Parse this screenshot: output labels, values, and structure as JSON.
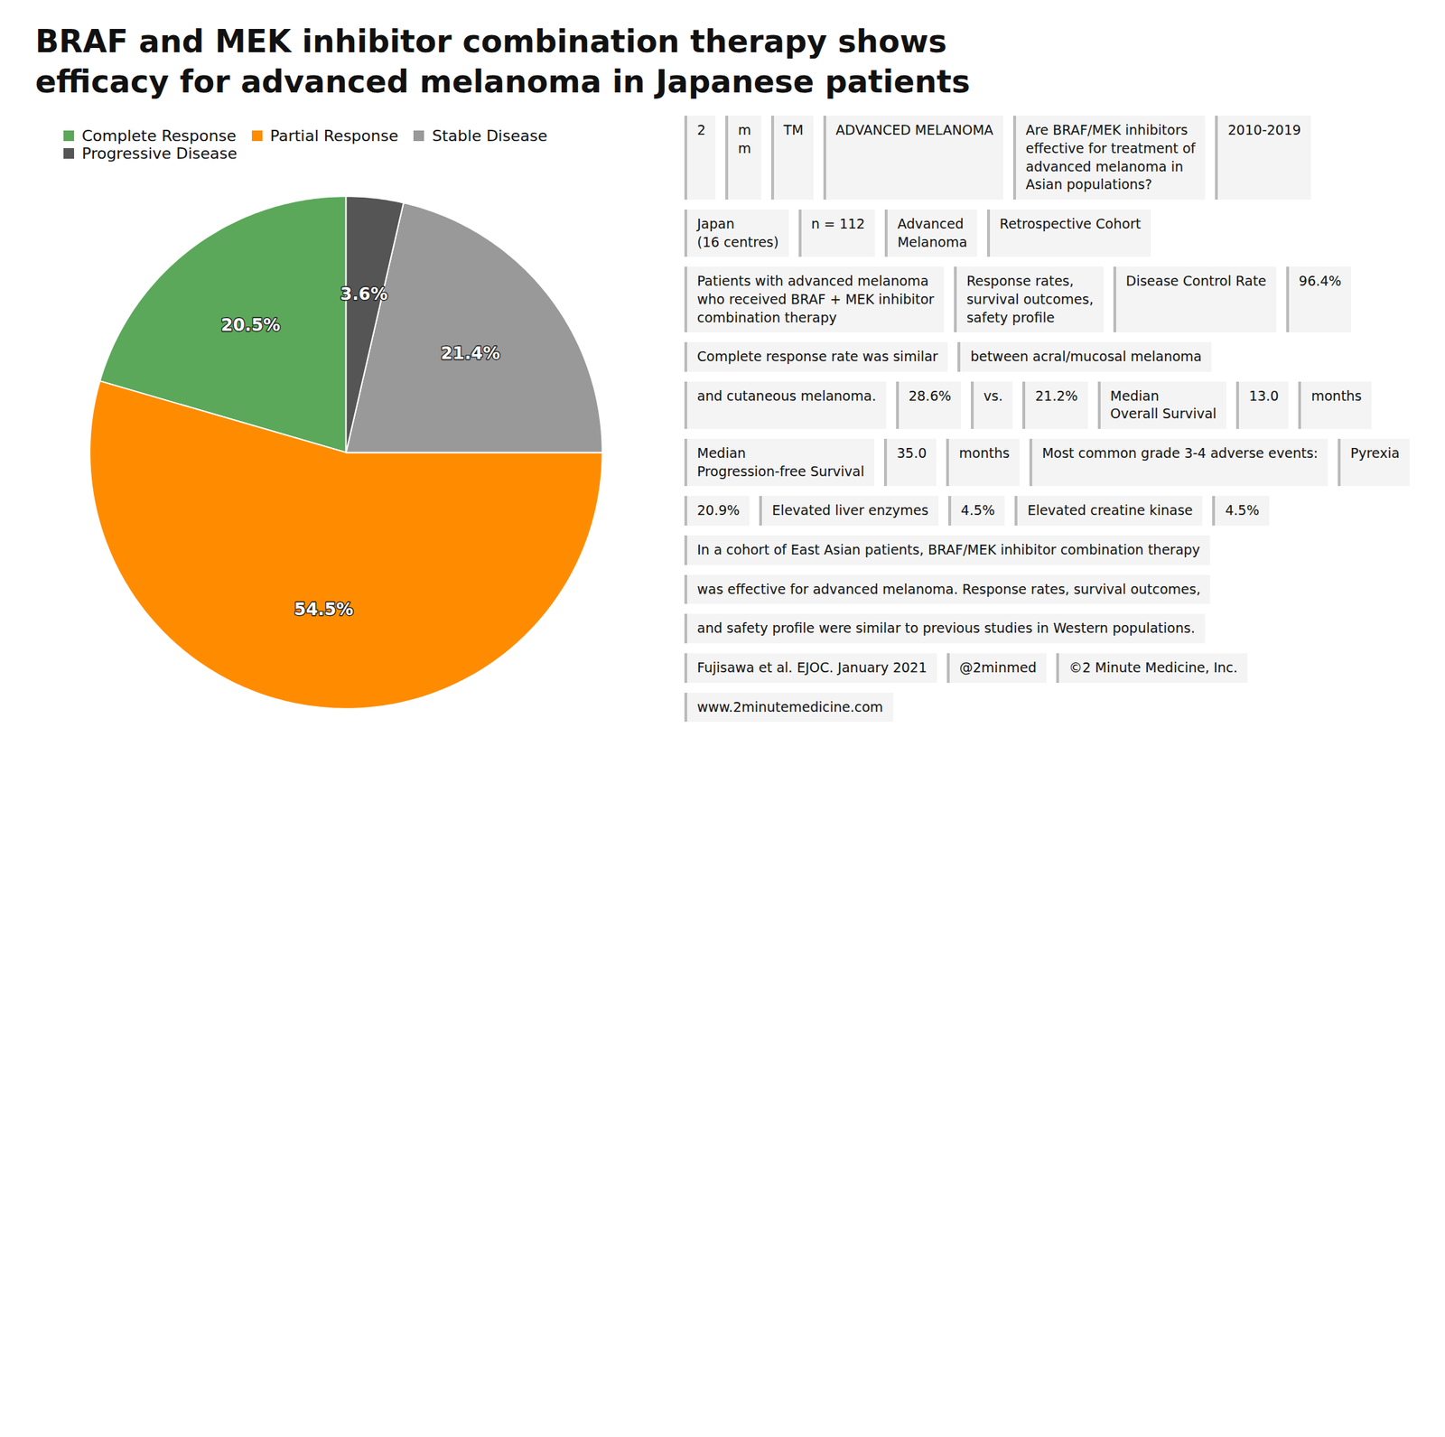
{
  "chart_data": {
    "type": "pie",
    "title": "BRAF and MEK inhibitor combination therapy shows\nefficacy for advanced melanoma in Japanese patients",
    "categories": [
      "Complete Response",
      "Partial Response",
      "Stable Disease",
      "Progressive Disease"
    ],
    "values": [
      20.5,
      54.5,
      21.4,
      3.6
    ],
    "value_labels": [
      "20.5%",
      "54.5%",
      "21.4%",
      "3.6%"
    ],
    "colors": [
      "#5BA85A",
      "#FF8C00",
      "#999999",
      "#555555"
    ],
    "data_labels": true,
    "legend": "top",
    "annotations": [
      "2",
      "m\nm",
      "TM",
      "ADVANCED MELANOMA",
      "Are BRAF/MEK inhibitors\neffective for treatment of\nadvanced melanoma in\nAsian populations?",
      "2010-2019",
      "Japan\n(16 centres)",
      "n = 112",
      "Advanced\nMelanoma",
      "Retrospective Cohort",
      "Patients with advanced melanoma\nwho received BRAF + MEK inhibitor\ncombination therapy",
      "Response rates,\nsurvival outcomes,\nsafety profile",
      "Disease Control Rate",
      "96.4%",
      "Complete response rate was similar",
      "between acral/mucosal melanoma",
      "and cutaneous melanoma.",
      "28.6%",
      "vs.",
      "21.2%",
      "Median\nOverall Survival",
      "13.0",
      "months",
      "Median\nProgression-free Survival",
      "35.0",
      "months",
      "Most common grade 3-4 adverse events:",
      "Pyrexia",
      "20.9%",
      "Elevated liver enzymes",
      "4.5%",
      "Elevated creatine kinase",
      "4.5%",
      "In a cohort of East Asian patients, BRAF/MEK inhibitor combination therapy",
      "was effective for advanced melanoma. Response rates, survival outcomes,",
      "and safety profile were similar to previous studies in Western populations.",
      "Fujisawa et al. EJOC. January 2021",
      "@2minmed",
      "©2 Minute Medicine, Inc.",
      "www.2minutemedicine.com"
    ]
  }
}
